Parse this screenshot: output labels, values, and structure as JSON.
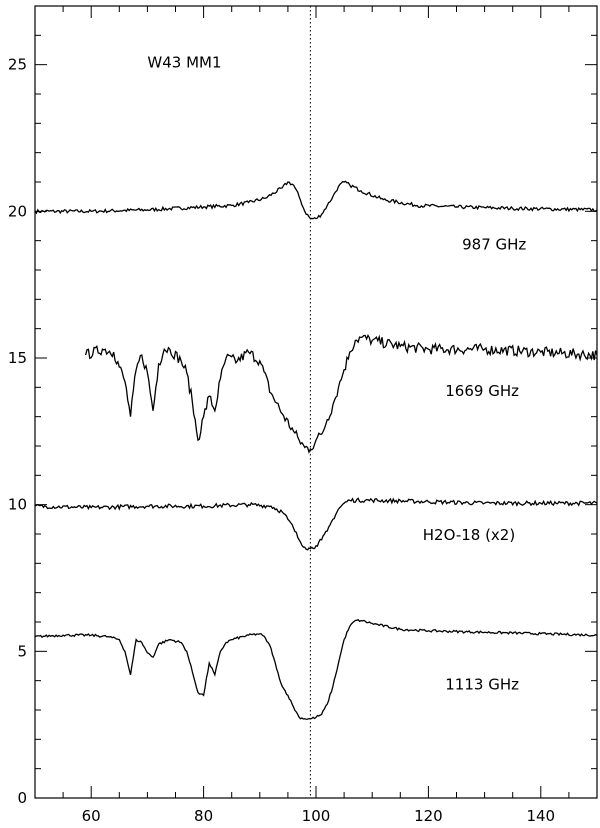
{
  "chart_data": {
    "type": "line",
    "title": "",
    "xlabel": "",
    "ylabel": "",
    "xlim": [
      50,
      150
    ],
    "ylim": [
      0,
      27
    ],
    "x_ticks": [
      60,
      80,
      100,
      120,
      140
    ],
    "y_ticks": [
      0,
      5,
      10,
      15,
      20,
      25
    ],
    "x_tick_labels": [
      "60",
      "80",
      "100",
      "120",
      "140"
    ],
    "y_tick_labels": [
      "0",
      "5",
      "10",
      "15",
      "20",
      "25"
    ],
    "grid": false,
    "legend": "none",
    "reference_line": {
      "x": 99,
      "style": "dotted"
    },
    "annotations": [
      {
        "text": "W43  MM1",
        "x": 70,
        "y": 24.9
      },
      {
        "text": "987  GHz",
        "x": 126,
        "y": 18.7
      },
      {
        "text": "1669  GHz",
        "x": 123,
        "y": 13.7
      },
      {
        "text": "H2O-18  (x2)",
        "x": 119,
        "y": 8.8
      },
      {
        "text": "1113  GHz",
        "x": 123,
        "y": 3.7
      }
    ],
    "series": [
      {
        "x": [
          50,
          60,
          70,
          80,
          85,
          88,
          91,
          94,
          95,
          96,
          97,
          98,
          99,
          100,
          101,
          102,
          103,
          104,
          105,
          106,
          108,
          112,
          118,
          125,
          135,
          150
        ],
        "y": [
          20.0,
          20.0,
          20.05,
          20.15,
          20.2,
          20.3,
          20.45,
          20.8,
          21.0,
          20.9,
          20.5,
          20.0,
          19.75,
          19.75,
          19.9,
          20.2,
          20.5,
          20.85,
          21.0,
          20.9,
          20.7,
          20.4,
          20.2,
          20.15,
          20.1,
          20.05
        ]
      },
      {
        "x": [
          59,
          62,
          64,
          66,
          67,
          68,
          69,
          70,
          71,
          72,
          73,
          74,
          76,
          77,
          78,
          79,
          80,
          81,
          82,
          83,
          84,
          86,
          88,
          90,
          92,
          94,
          96,
          97,
          98,
          99,
          100,
          101,
          102,
          103,
          104,
          105,
          106,
          107,
          108,
          110,
          115,
          120,
          130,
          140,
          150
        ],
        "y": [
          15.1,
          15.3,
          15.2,
          14.2,
          13.0,
          14.6,
          15.1,
          14.5,
          13.2,
          14.8,
          15.3,
          15.3,
          14.9,
          14.5,
          13.5,
          12.2,
          13.0,
          13.7,
          13.2,
          14.3,
          15.0,
          14.9,
          15.2,
          14.9,
          13.8,
          13.1,
          12.5,
          12.2,
          11.95,
          11.9,
          12.2,
          12.4,
          12.9,
          13.4,
          14.0,
          14.6,
          15.2,
          15.6,
          15.7,
          15.6,
          15.4,
          15.3,
          15.3,
          15.2,
          15.1
        ]
      },
      {
        "x": [
          50,
          60,
          70,
          80,
          88,
          92,
          94,
          95,
          96,
          97,
          98,
          99,
          100,
          101,
          102,
          103,
          104,
          105,
          106,
          110,
          120,
          130,
          140,
          150
        ],
        "y": [
          9.95,
          9.9,
          9.95,
          9.95,
          10.0,
          9.95,
          9.75,
          9.5,
          9.2,
          8.8,
          8.55,
          8.5,
          8.6,
          8.8,
          9.1,
          9.5,
          9.85,
          10.05,
          10.15,
          10.15,
          10.1,
          10.05,
          10.05,
          10.05
        ]
      },
      {
        "x": [
          50,
          55,
          60,
          63,
          65,
          66,
          67,
          68,
          69,
          70,
          71,
          72,
          74,
          76,
          77,
          78,
          79,
          80,
          81,
          82,
          83,
          84,
          85,
          88,
          90,
          91,
          92,
          93,
          94,
          95,
          96,
          97,
          98,
          99,
          100,
          101,
          102,
          103,
          104,
          105,
          106,
          107,
          108,
          110,
          115,
          120,
          130,
          140,
          150
        ],
        "y": [
          5.5,
          5.55,
          5.55,
          5.5,
          5.4,
          5.0,
          4.2,
          5.4,
          5.3,
          4.95,
          4.8,
          5.25,
          5.4,
          5.3,
          5.0,
          4.3,
          3.6,
          3.5,
          4.6,
          4.2,
          5.0,
          5.3,
          5.4,
          5.55,
          5.6,
          5.45,
          5.1,
          4.4,
          3.8,
          3.5,
          3.1,
          2.75,
          2.7,
          2.7,
          2.75,
          2.85,
          3.2,
          3.8,
          4.6,
          5.4,
          5.85,
          6.05,
          6.05,
          5.95,
          5.75,
          5.7,
          5.65,
          5.6,
          5.55
        ]
      }
    ]
  }
}
